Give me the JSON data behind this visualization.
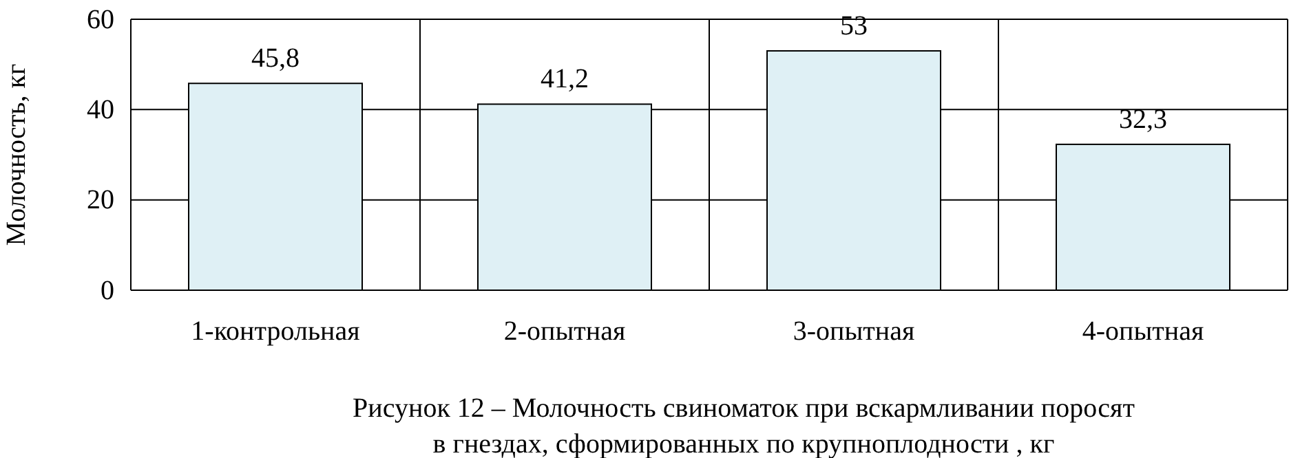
{
  "chart_data": {
    "type": "bar",
    "title": "Рисунок 12 – Молочность свиноматок при вскармливании поросят\nв гнездах, сформированных по крупноплодности , кг",
    "ylabel": "Молочность, кг",
    "categories": [
      "1-контрольная",
      "2-опытная",
      "3-опытная",
      "4-опытная"
    ],
    "values": [
      45.8,
      41.2,
      53,
      32.3
    ],
    "value_labels": [
      "45,8",
      "41,2",
      "53",
      "32,3"
    ],
    "color": "#dff0f5",
    "ylim": [
      0,
      60
    ],
    "yticks": [
      0,
      20,
      40,
      60
    ],
    "grid": true
  }
}
